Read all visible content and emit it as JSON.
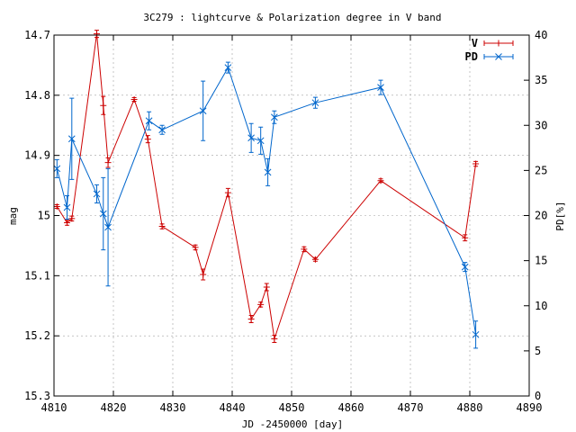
{
  "chart_data": {
    "type": "line",
    "title": "3C279 : lightcurve & Polarization degree in V band",
    "xlabel": "JD -2450000 [day]",
    "ylabel": "mag",
    "y2label": "PD[%]",
    "xlim": [
      4810,
      4890
    ],
    "ylim": [
      15.3,
      14.7
    ],
    "y2lim": [
      0,
      40
    ],
    "xticks": [
      "4810",
      "4820",
      "4830",
      "4840",
      "4850",
      "4860",
      "4870",
      "4880",
      "4890"
    ],
    "yticks": [
      "14.7",
      "14.8",
      "14.9",
      "15",
      "15.1",
      "15.2",
      "15.3"
    ],
    "y2ticks": [
      "0",
      "5",
      "10",
      "15",
      "20",
      "25",
      "30",
      "35",
      "40"
    ],
    "grid": true,
    "legend": "top-right",
    "series": [
      {
        "name": "V",
        "axis": "left",
        "color": "#cc0000",
        "marker": "plus",
        "x": [
          4810.5,
          4812.2,
          4813.0,
          4817.2,
          4818.3,
          4819.1,
          4823.5,
          4825.8,
          4828.2,
          4833.8,
          4835.1,
          4839.3,
          4843.2,
          4844.8,
          4845.8,
          4847.1,
          4852.1,
          4854.0,
          4865.0,
          4879.2,
          4881.0
        ],
        "y": [
          14.985,
          15.012,
          15.005,
          14.698,
          14.817,
          14.912,
          14.807,
          14.873,
          15.018,
          15.053,
          15.098,
          14.962,
          15.172,
          15.148,
          15.119,
          15.205,
          15.056,
          15.073,
          14.942,
          15.037,
          14.914
        ],
        "err": [
          0.003,
          0.004,
          0.004,
          0.006,
          0.015,
          0.008,
          0.003,
          0.006,
          0.004,
          0.004,
          0.009,
          0.007,
          0.006,
          0.004,
          0.006,
          0.006,
          0.004,
          0.003,
          0.003,
          0.005,
          0.004
        ]
      },
      {
        "name": "PD",
        "axis": "right",
        "color": "#0066cc",
        "marker": "cross",
        "x": [
          4810.5,
          4812.2,
          4813.0,
          4817.2,
          4818.3,
          4819.1,
          4826.0,
          4828.2,
          4835.1,
          4839.3,
          4843.2,
          4844.8,
          4846.0,
          4847.1,
          4854.0,
          4865.0,
          4879.2,
          4881.0
        ],
        "y": [
          25.2,
          20.9,
          28.5,
          22.4,
          20.2,
          18.7,
          30.5,
          29.5,
          31.6,
          36.4,
          28.6,
          28.3,
          24.8,
          30.9,
          32.5,
          34.2,
          14.3,
          6.8
        ],
        "err": [
          1.0,
          1.3,
          4.5,
          1.0,
          4.0,
          6.5,
          1.0,
          0.5,
          3.3,
          0.6,
          1.6,
          1.5,
          1.5,
          0.7,
          0.6,
          0.8,
          0.5,
          1.5
        ]
      }
    ]
  }
}
